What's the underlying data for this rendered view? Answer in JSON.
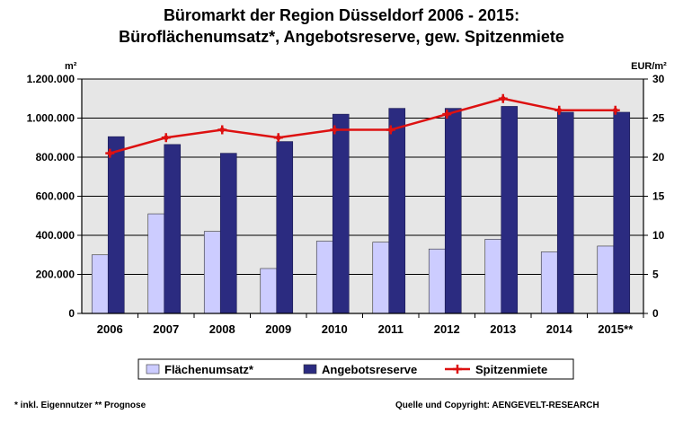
{
  "chart_data": {
    "type": "bar",
    "title": "Büromarkt der Region Düsseldorf 2006 - 2015:",
    "subtitle": "Büroflächenumsatz*, Angebotsreserve, gew. Spitzenmiete",
    "ylabel_left": "m²",
    "ylabel_right": "EUR/m²",
    "categories": [
      "2006",
      "2007",
      "2008",
      "2009",
      "2010",
      "2011",
      "2012",
      "2013",
      "2014",
      "2015**"
    ],
    "left_axis": {
      "ylim": [
        0,
        1200000
      ],
      "ticks": [
        0,
        200000,
        400000,
        600000,
        800000,
        1000000,
        1200000
      ],
      "tick_labels": [
        "0",
        "200.000",
        "400.000",
        "600.000",
        "800.000",
        "1.000.000",
        "1.200.000"
      ]
    },
    "right_axis": {
      "ylim": [
        0,
        30
      ],
      "ticks": [
        0,
        5,
        10,
        15,
        20,
        25,
        30
      ],
      "tick_labels": [
        "0",
        "5",
        "10",
        "15",
        "20",
        "25",
        "30"
      ]
    },
    "series": [
      {
        "name": "Flächenumsatz*",
        "kind": "bar",
        "axis": "left",
        "color": "#ccccff",
        "values": [
          300000,
          510000,
          420000,
          230000,
          370000,
          365000,
          330000,
          380000,
          315000,
          345000
        ]
      },
      {
        "name": "Angebotsreserve",
        "kind": "bar",
        "axis": "left",
        "color": "#2b2b80",
        "values": [
          905000,
          865000,
          820000,
          880000,
          1020000,
          1050000,
          1050000,
          1060000,
          1030000,
          1030000
        ]
      },
      {
        "name": "Spitzenmiete",
        "kind": "line",
        "axis": "right",
        "color": "#dd1111",
        "values": [
          20.5,
          22.5,
          23.5,
          22.5,
          23.5,
          23.5,
          25.5,
          27.5,
          26.0,
          26.0
        ]
      }
    ],
    "grid": true,
    "legend_position": "bottom"
  },
  "footer": {
    "note": "* inkl. Eigennutzer ** Prognose",
    "source": "Quelle und Copyright: AENGEVELT-RESEARCH"
  },
  "colors": {
    "plot_background": "#e6e6e6",
    "bar_light": "#ccccff",
    "bar_dark": "#2b2b80",
    "line": "#dd1111"
  }
}
